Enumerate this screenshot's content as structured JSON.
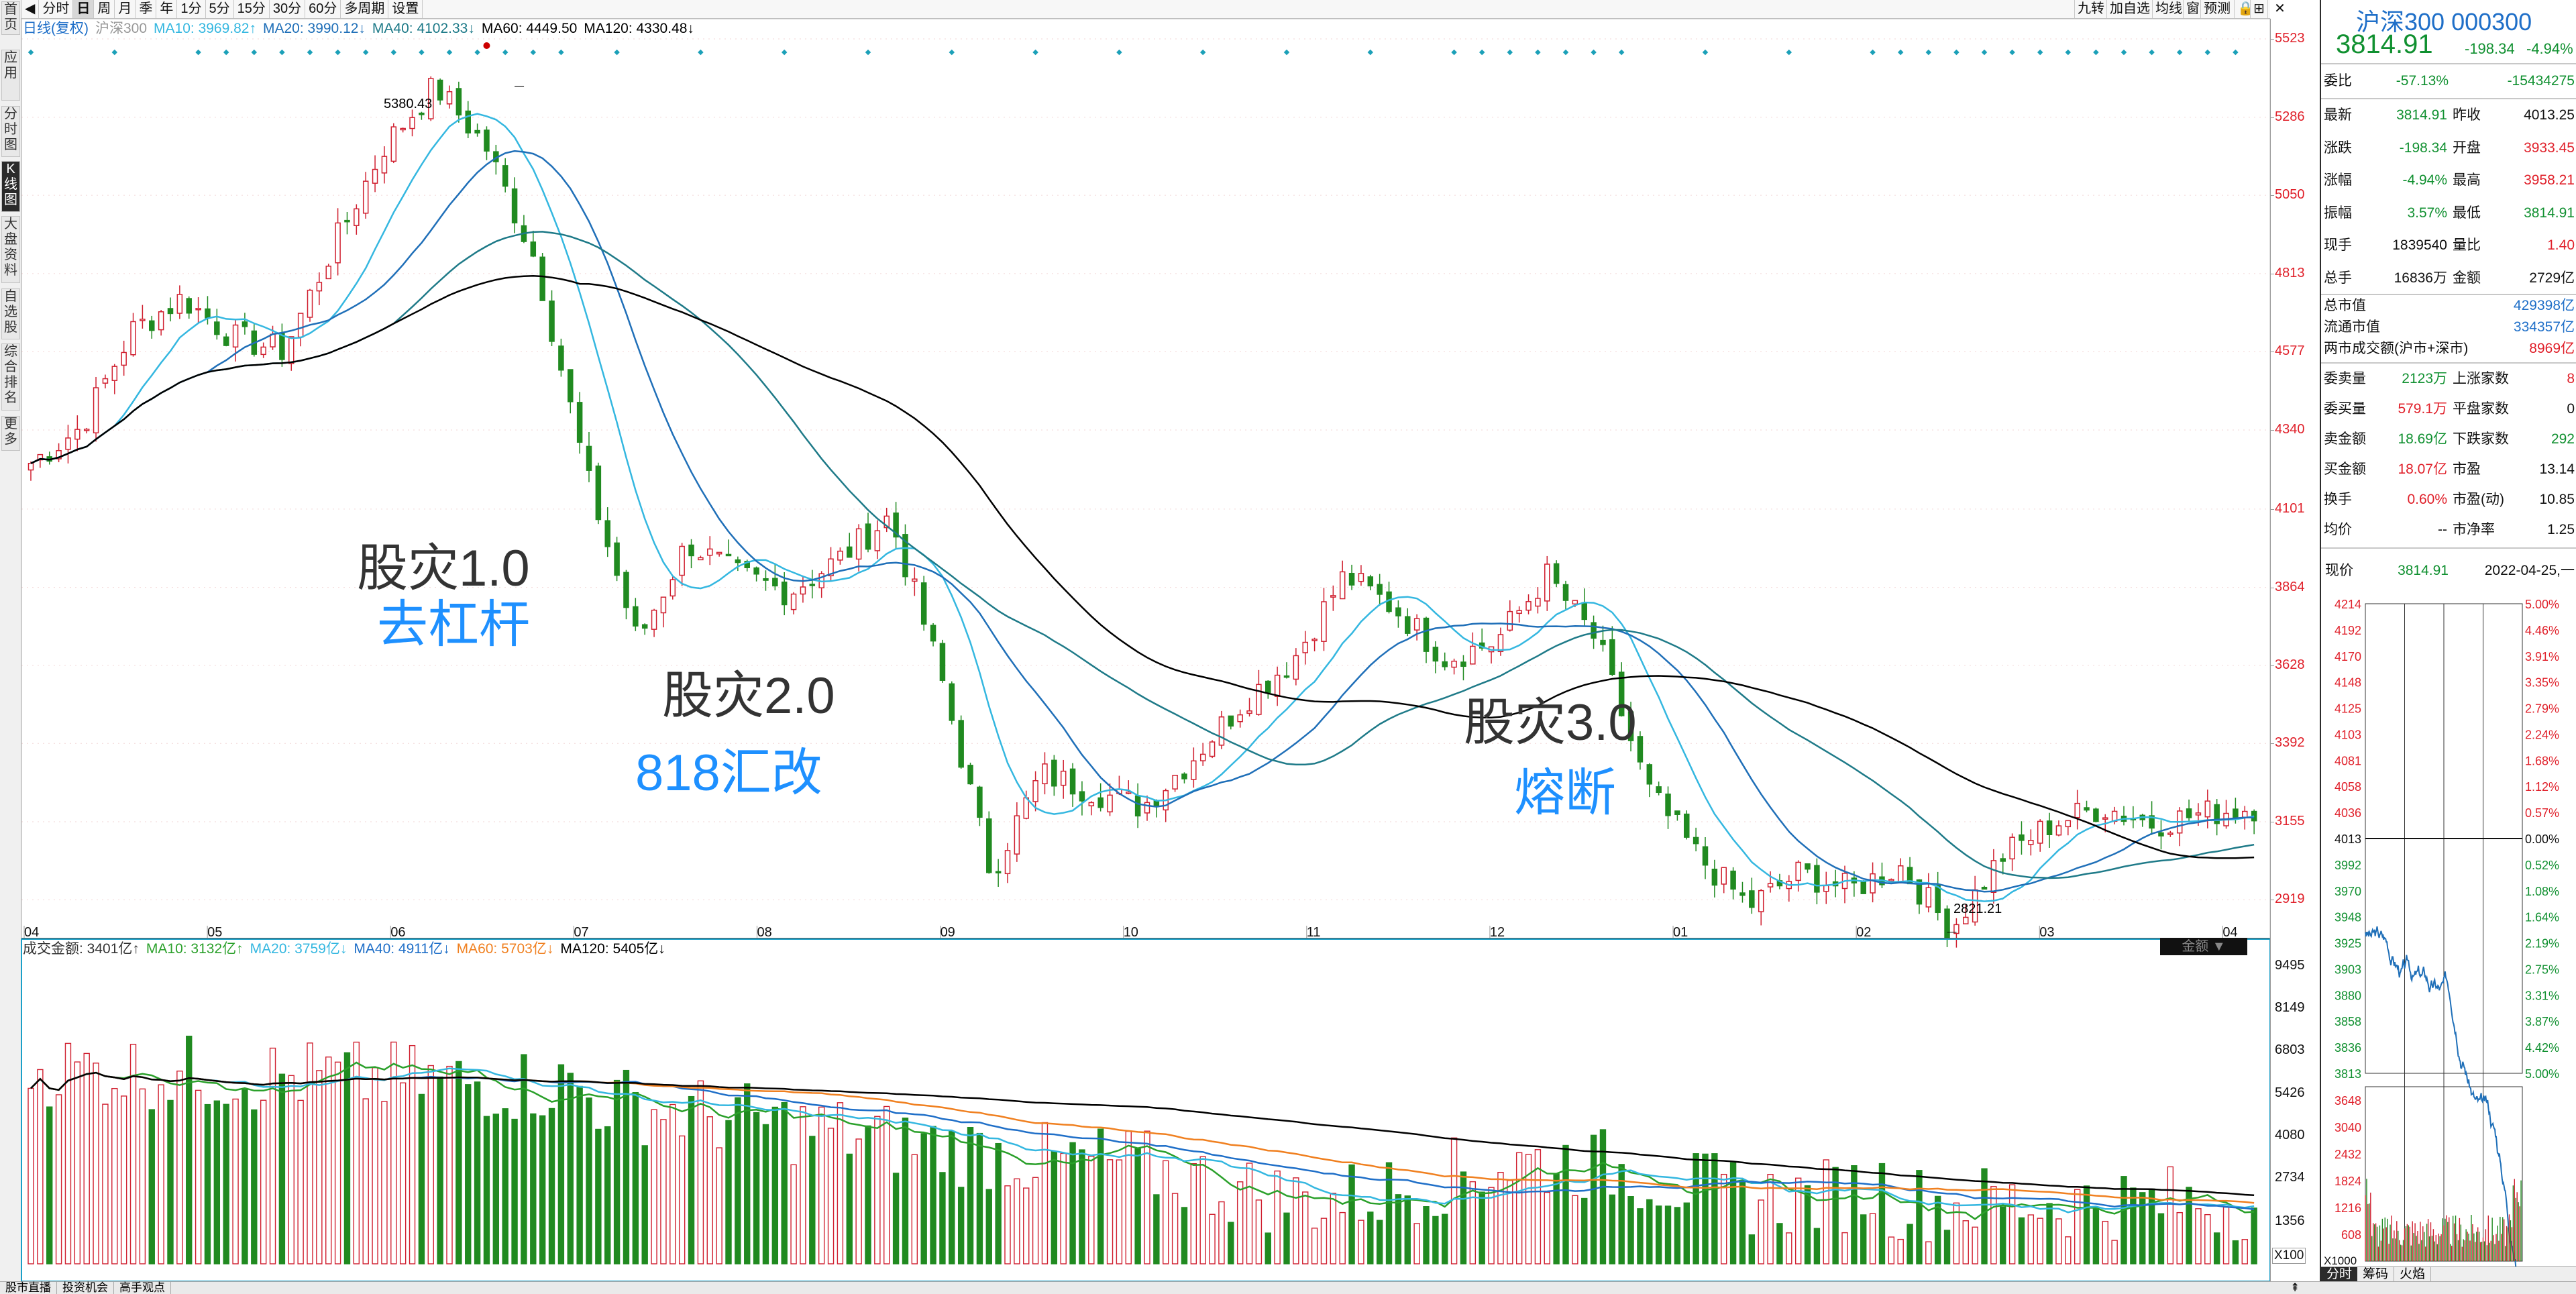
{
  "leftnav": [
    "首页",
    "应用",
    "分时图",
    "K线图",
    "大盘资料",
    "自选股",
    "综合排名",
    "更多"
  ],
  "toolbar": {
    "items": [
      "分时",
      "日",
      "周",
      "月",
      "季",
      "年",
      "1分",
      "5分",
      "15分",
      "30分",
      "60分",
      "多周期",
      "设置"
    ],
    "active_index": 1,
    "right_items": [
      "九转",
      "加自选",
      "均线",
      "窗",
      "预测"
    ]
  },
  "legend_main": {
    "title": "日线(复权)",
    "index": "沪深300",
    "ma10": "MA10: 3969.82↑",
    "ma20": "MA20: 3990.12↓",
    "ma40": "MA40: 4102.33↓",
    "ma60": "MA60: 4449.50",
    "ma120": "MA120: 4330.48↓"
  },
  "legend_vol": {
    "amount": "成交金额: 3401亿↑",
    "ma10": "MA10: 3132亿↑",
    "ma20": "MA20: 3759亿↓",
    "ma40": "MA40: 4911亿↓",
    "ma60": "MA60: 5703亿↓",
    "ma120": "MA120: 5405亿↓",
    "dropdown": "金额"
  },
  "price_axis": [
    "5523",
    "5286",
    "5050",
    "4813",
    "4577",
    "4340",
    "4101",
    "3864",
    "3628",
    "3392",
    "3155",
    "2919"
  ],
  "vol_axis": [
    "9495",
    "8149",
    "6803",
    "5426",
    "4080",
    "2734",
    "1356"
  ],
  "vol_unit": "X100",
  "months": [
    "04",
    "05",
    "06",
    "07",
    "08",
    "09",
    "10",
    "11",
    "12",
    "01",
    "02",
    "03",
    "04"
  ],
  "annotations": [
    {
      "line1": "股灾1.0",
      "line2": "去杠杆"
    },
    {
      "line1": "股灾2.0",
      "line2": "818汇改"
    },
    {
      "line1": "股灾3.0",
      "line2": "熔断"
    }
  ],
  "extremes": {
    "high": "5380.43",
    "low": "2821.21"
  },
  "chart_data": {
    "type": "candlestick",
    "ylim": [
      2800,
      5523
    ],
    "months": [
      "04",
      "05",
      "06",
      "07",
      "08",
      "09",
      "10",
      "11",
      "12",
      "01",
      "02",
      "03",
      "04"
    ],
    "anchors": [
      4240,
      4350,
      4640,
      4740,
      4620,
      4580,
      4900,
      5200,
      5380,
      5200,
      4850,
      4200,
      3700,
      4000,
      3900,
      3850,
      3950,
      4080,
      3600,
      3000,
      3300,
      3250,
      3200,
      3350,
      3520,
      3650,
      3900,
      3800,
      3650,
      3700,
      3900,
      3700,
      3250,
      3050,
      2900,
      3000,
      2950,
      3020,
      2830,
      3050,
      3150,
      3200,
      3150,
      3180,
      3200
    ],
    "ma_colors": {
      "ma10": "#34b7e0",
      "ma20": "#1f6fb8",
      "ma40": "#1e7a88",
      "ma60": "#000000"
    },
    "highlights": [
      {
        "label": "5380.43",
        "value": 5380.43
      },
      {
        "label": "2821.21",
        "value": 2821.21
      }
    ]
  },
  "right": {
    "title": "沪深300 000300",
    "price": "3814.91",
    "change": "-198.34",
    "pct": "-4.94%",
    "weibi": {
      "label": "委比",
      "v1": "-57.13%",
      "v2": "-15434275"
    },
    "quote": [
      [
        "最新",
        "3814.91",
        "昨收",
        "4013.25"
      ],
      [
        "涨跌",
        "-198.34",
        "开盘",
        "3933.45"
      ],
      [
        "涨幅",
        "-4.94%",
        "最高",
        "3958.21"
      ],
      [
        "振幅",
        "3.57%",
        "最低",
        "3814.91"
      ],
      [
        "现手",
        "1839540",
        "量比",
        "1.40"
      ],
      [
        "总手",
        "16836万",
        "金额",
        "2729亿"
      ]
    ],
    "cap": [
      [
        "总市值",
        "429398亿"
      ],
      [
        "流通市值",
        "334357亿"
      ],
      [
        "两市成交额(沪市+深市)",
        "8969亿"
      ]
    ],
    "stats": [
      [
        "委卖量",
        "2123万",
        "上涨家数",
        "8"
      ],
      [
        "委买量",
        "579.1万",
        "平盘家数",
        "0"
      ],
      [
        "卖金额",
        "18.69亿",
        "下跌家数",
        "292"
      ],
      [
        "买金额",
        "18.07亿",
        "市盈",
        "13.14"
      ],
      [
        "换手",
        "0.60%",
        "市盈(动)",
        "10.85"
      ],
      [
        "均价",
        "--",
        "市净率",
        "1.25"
      ]
    ],
    "now": {
      "label": "现价",
      "price": "3814.91",
      "date": "2022-04-25,一"
    },
    "mini_left": [
      "4214",
      "4192",
      "4170",
      "4148",
      "4125",
      "4103",
      "4081",
      "4058",
      "4036",
      "4013",
      "3992",
      "3970",
      "3948",
      "3925",
      "3903",
      "3880",
      "3858",
      "3836",
      "3813",
      "3648",
      "3040",
      "2432",
      "1824",
      "1216",
      "608"
    ],
    "mini_right": [
      "5.00%",
      "4.46%",
      "3.91%",
      "3.35%",
      "2.79%",
      "2.24%",
      "1.68%",
      "1.12%",
      "0.57%",
      "0.00%",
      "0.52%",
      "1.08%",
      "1.64%",
      "2.19%",
      "2.75%",
      "3.31%",
      "3.87%",
      "4.42%",
      "5.00%"
    ],
    "mini_unit": "X1000",
    "tabs": [
      "分时",
      "筹码",
      "火焰"
    ]
  },
  "bottom": {
    "tabs": [
      "股市直播",
      "投资机会",
      "高手观点"
    ]
  }
}
